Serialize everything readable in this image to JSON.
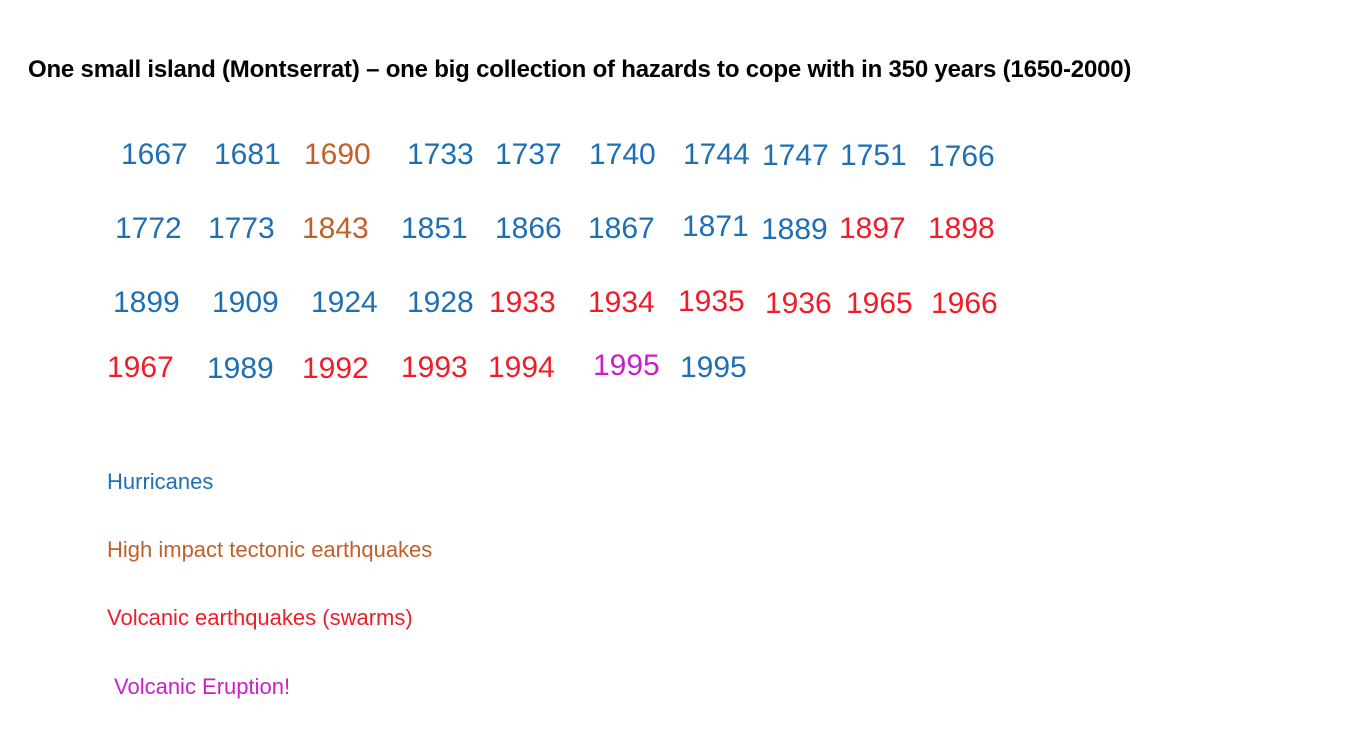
{
  "title": "One small island (Montserrat) – one big collection of hazards to cope with in 350 years (1650-2000)",
  "colors": {
    "hurricane": "#1f6fb5",
    "tectonic": "#c0602a",
    "volcanic": "#ef1c2a",
    "eruption": "#c81fc8"
  },
  "years": [
    {
      "year": "1667",
      "type": "hurricane"
    },
    {
      "year": "1681",
      "type": "hurricane"
    },
    {
      "year": "1690",
      "type": "tectonic"
    },
    {
      "year": "1733",
      "type": "hurricane"
    },
    {
      "year": "1737",
      "type": "hurricane"
    },
    {
      "year": "1740",
      "type": "hurricane"
    },
    {
      "year": "1744",
      "type": "hurricane"
    },
    {
      "year": "1747",
      "type": "hurricane"
    },
    {
      "year": "1751",
      "type": "hurricane"
    },
    {
      "year": "1766",
      "type": "hurricane"
    },
    {
      "year": "1772",
      "type": "hurricane"
    },
    {
      "year": "1773",
      "type": "hurricane"
    },
    {
      "year": "1843",
      "type": "tectonic"
    },
    {
      "year": "1851",
      "type": "hurricane"
    },
    {
      "year": "1866",
      "type": "hurricane"
    },
    {
      "year": "1867",
      "type": "hurricane"
    },
    {
      "year": "1871",
      "type": "hurricane"
    },
    {
      "year": "1889",
      "type": "hurricane"
    },
    {
      "year": "1897",
      "type": "volcanic"
    },
    {
      "year": "1898",
      "type": "volcanic"
    },
    {
      "year": "1899",
      "type": "hurricane"
    },
    {
      "year": "1909",
      "type": "hurricane"
    },
    {
      "year": "1924",
      "type": "hurricane"
    },
    {
      "year": "1928",
      "type": "hurricane"
    },
    {
      "year": "1933",
      "type": "volcanic"
    },
    {
      "year": "1934",
      "type": "volcanic"
    },
    {
      "year": "1935",
      "type": "volcanic"
    },
    {
      "year": "1936",
      "type": "volcanic"
    },
    {
      "year": "1965",
      "type": "volcanic"
    },
    {
      "year": "1966",
      "type": "volcanic"
    },
    {
      "year": "1967",
      "type": "volcanic"
    },
    {
      "year": "1989",
      "type": "hurricane"
    },
    {
      "year": "1992",
      "type": "volcanic"
    },
    {
      "year": "1993",
      "type": "volcanic"
    },
    {
      "year": "1994",
      "type": "volcanic"
    },
    {
      "year": "1995",
      "type": "eruption"
    },
    {
      "year": "1995",
      "type": "hurricane"
    }
  ],
  "legend": {
    "hurricane": "Hurricanes",
    "tectonic": "High impact  tectonic earthquakes",
    "volcanic": "Volcanic earthquakes (swarms)",
    "eruption": "Volcanic Eruption!"
  }
}
